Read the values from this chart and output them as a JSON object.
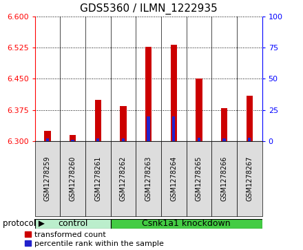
{
  "title": "GDS5360 / ILMN_1222935",
  "samples": [
    "GSM1278259",
    "GSM1278260",
    "GSM1278261",
    "GSM1278262",
    "GSM1278263",
    "GSM1278264",
    "GSM1278265",
    "GSM1278266",
    "GSM1278267"
  ],
  "transformed_count": [
    6.325,
    6.315,
    6.4,
    6.385,
    6.527,
    6.532,
    6.45,
    6.38,
    6.41
  ],
  "percentile_rank": [
    2,
    1,
    2,
    2,
    20,
    20,
    3,
    2,
    3
  ],
  "ylim_left": [
    6.3,
    6.6
  ],
  "ylim_right": [
    0,
    100
  ],
  "yticks_left": [
    6.3,
    6.375,
    6.45,
    6.525,
    6.6
  ],
  "yticks_right": [
    0,
    25,
    50,
    75,
    100
  ],
  "bar_base": 6.3,
  "red_color": "#cc0000",
  "blue_color": "#2222cc",
  "control_light_color": "#bbeecc",
  "knockdown_color": "#44cc44",
  "bg_color": "#ffffff",
  "tick_label_bg": "#dddddd",
  "control_indices": [
    0,
    1,
    2
  ],
  "knockdown_indices": [
    3,
    4,
    5,
    6,
    7,
    8
  ],
  "control_label": "control",
  "knockdown_label": "Csnk1a1 knockdown",
  "protocol_label": "protocol",
  "bar_width": 0.25,
  "blue_bar_width": 0.12
}
